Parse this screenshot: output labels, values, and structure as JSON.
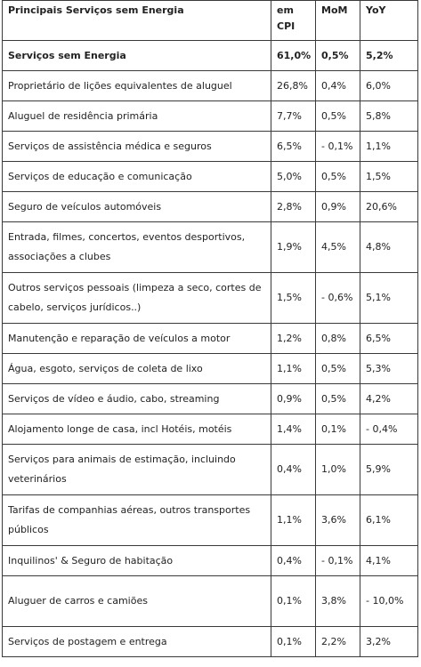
{
  "table": {
    "headers": [
      "Principais Serviços sem Energia",
      "em CPI",
      "MoM",
      "YoY"
    ],
    "rows": [
      {
        "name": "Serviços sem Energia",
        "cpi": "61,0%",
        "mom": "0,5%",
        "yoy": "5,2%",
        "bold": true
      },
      {
        "name": "Proprietário de lições equivalentes de aluguel",
        "cpi": "26,8%",
        "mom": "0,4%",
        "yoy": "6,0%"
      },
      {
        "name": "Aluguel de residência primária",
        "cpi": "7,7%",
        "mom": "0,5%",
        "yoy": "5,8%"
      },
      {
        "name": "Serviços de assistência médica e seguros",
        "cpi": "6,5%",
        "mom": "- 0,1%",
        "yoy": "1,1%"
      },
      {
        "name": "Serviços de educação e comunicação",
        "cpi": "5,0%",
        "mom": "0,5%",
        "yoy": "1,5%"
      },
      {
        "name": "Seguro de veículos automóveis",
        "cpi": "2,8%",
        "mom": "0,9%",
        "yoy": "20,6%"
      },
      {
        "name": "Entrada, filmes, concertos, eventos desportivos, associações a clubes",
        "cpi": "1,9%",
        "mom": "4,5%",
        "yoy": "4,8%",
        "tall": true
      },
      {
        "name": "Outros serviços pessoais (limpeza a seco, cortes de cabelo, serviços jurídicos..)",
        "cpi": "1,5%",
        "mom": "- 0,6%",
        "yoy": "5,1%",
        "tall": true
      },
      {
        "name": "Manutenção e reparação de veículos a motor",
        "cpi": "1,2%",
        "mom": "0,8%",
        "yoy": "6,5%"
      },
      {
        "name": "Água, esgoto, serviços de coleta de lixo",
        "cpi": "1,1%",
        "mom": "0,5%",
        "yoy": "5,3%"
      },
      {
        "name": "Serviços de vídeo e áudio, cabo, streaming",
        "cpi": "0,9%",
        "mom": "0,5%",
        "yoy": "4,2%"
      },
      {
        "name": "Alojamento longe de casa, incl Hotéis, motéis",
        "cpi": "1,4%",
        "mom": "0,1%",
        "yoy": "- 0,4%"
      },
      {
        "name": "Serviços para animais de estimação, incluindo veterinários",
        "cpi": "0,4%",
        "mom": "1,0%",
        "yoy": "5,9%",
        "tall": true
      },
      {
        "name": "Tarifas de companhias aéreas, outros transportes públicos",
        "cpi": "1,1%",
        "mom": "3,6%",
        "yoy": "6,1%",
        "tall": true
      },
      {
        "name": "Inquilinos' & Seguro de habitação",
        "cpi": "0,4%",
        "mom": "- 0,1%",
        "yoy": "4,1%"
      },
      {
        "name": "Aluguer de carros e camiões",
        "cpi": "0,1%",
        "mom": "3,8%",
        "yoy": "- 10,0%",
        "tall": true,
        "wrapYoy": true
      },
      {
        "name": "Serviços de postagem e entrega",
        "cpi": "0,1%",
        "mom": "2,2%",
        "yoy": "3,2%"
      }
    ]
  }
}
